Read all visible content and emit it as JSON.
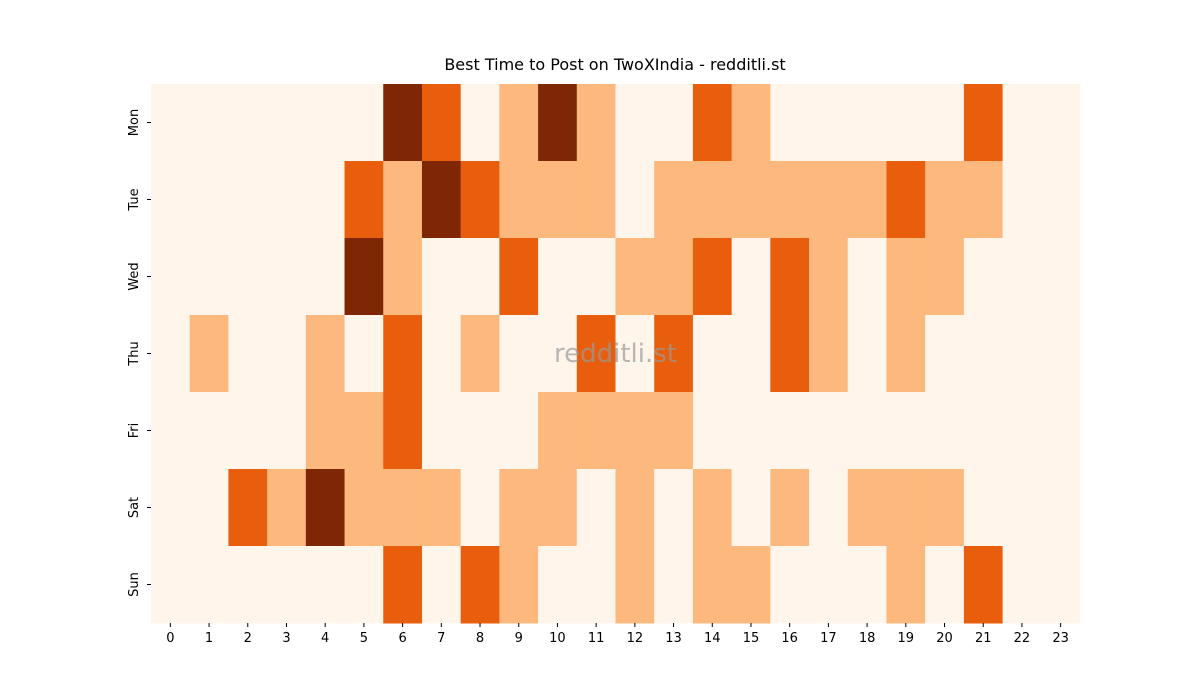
{
  "chart_data": {
    "type": "heatmap",
    "title": "Best Time to Post on TwoXIndia - redditli.st",
    "watermark": "redditli.st",
    "x": [
      0,
      1,
      2,
      3,
      4,
      5,
      6,
      7,
      8,
      9,
      10,
      11,
      12,
      13,
      14,
      15,
      16,
      17,
      18,
      19,
      20,
      21,
      22,
      23
    ],
    "categories": [
      "Mon",
      "Tue",
      "Wed",
      "Thu",
      "Fri",
      "Sat",
      "Sun"
    ],
    "colors": [
      "#fff5eb",
      "#fdb97d",
      "#e95e0d",
      "#7f2704"
    ],
    "values": [
      [
        0,
        0,
        0,
        0,
        0,
        0,
        3,
        2,
        0,
        1,
        3,
        1,
        0,
        0,
        2,
        1,
        0,
        0,
        0,
        0,
        0,
        2,
        0,
        0
      ],
      [
        0,
        0,
        0,
        0,
        0,
        2,
        1,
        3,
        2,
        1,
        1,
        1,
        0,
        1,
        1,
        1,
        1,
        1,
        1,
        2,
        1,
        1,
        0,
        0
      ],
      [
        0,
        0,
        0,
        0,
        0,
        3,
        1,
        0,
        0,
        2,
        0,
        0,
        1,
        1,
        2,
        0,
        2,
        1,
        0,
        1,
        1,
        0,
        0,
        0
      ],
      [
        0,
        1,
        0,
        0,
        1,
        0,
        2,
        0,
        1,
        0,
        0,
        2,
        0,
        2,
        0,
        0,
        2,
        1,
        0,
        1,
        0,
        0,
        0,
        0
      ],
      [
        0,
        0,
        0,
        0,
        1,
        1,
        2,
        0,
        0,
        0,
        1,
        1,
        1,
        1,
        0,
        0,
        0,
        0,
        0,
        0,
        0,
        0,
        0,
        0
      ],
      [
        0,
        0,
        2,
        1,
        3,
        1,
        1,
        1,
        0,
        1,
        1,
        0,
        1,
        0,
        1,
        0,
        1,
        0,
        1,
        1,
        1,
        0,
        0,
        0
      ],
      [
        0,
        0,
        0,
        0,
        0,
        0,
        2,
        0,
        2,
        1,
        0,
        0,
        1,
        0,
        1,
        1,
        0,
        0,
        0,
        1,
        0,
        2,
        0,
        0
      ]
    ]
  }
}
